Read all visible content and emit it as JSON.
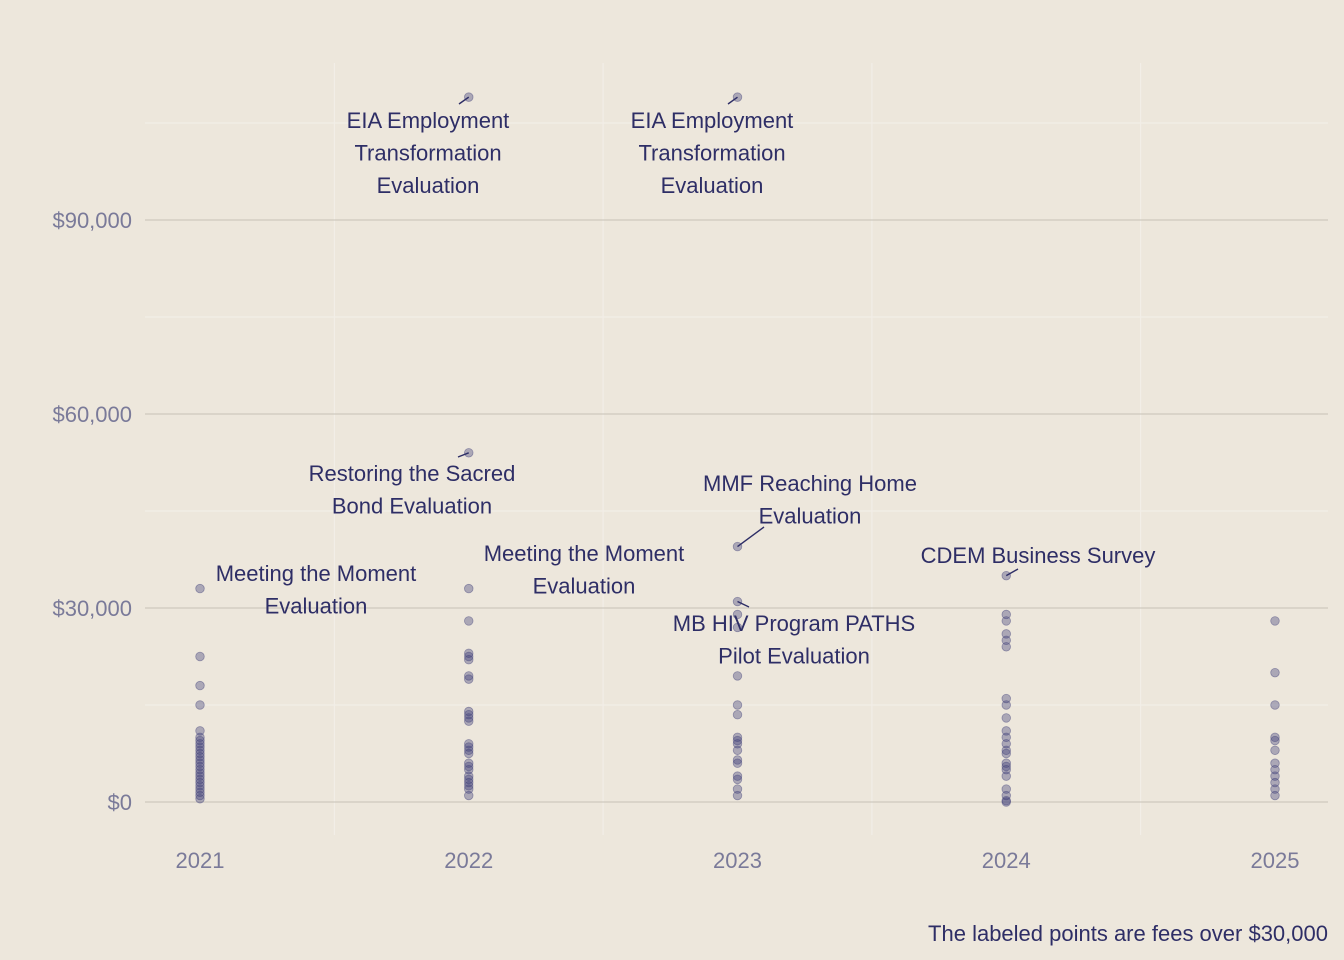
{
  "chart_data": {
    "type": "scatter",
    "title": "",
    "xlabel": "",
    "ylabel": "",
    "ylim": [
      -7000,
      117000
    ],
    "y_ticks": [
      0,
      30000,
      60000,
      90000
    ],
    "y_tick_labels": [
      "$0",
      "$30,000",
      "$60,000",
      "$90,000"
    ],
    "x_categories": [
      "2021",
      "2022",
      "2023",
      "2024",
      "2025"
    ],
    "grid": true,
    "caption": "The labeled points are fees over $30,000",
    "colors": {
      "background": "#ede7dc",
      "point": "#3e3e78",
      "text": "#2e2e66",
      "tick": "#7a7a99",
      "grid_major": "#c6c1b6",
      "grid_minor": "#f2eee7"
    },
    "points": {
      "2021": [
        33000,
        22500,
        18000,
        15000,
        11000,
        10000,
        9500,
        9000,
        8500,
        8000,
        7500,
        7000,
        6500,
        6000,
        5500,
        5000,
        4500,
        4000,
        3500,
        3000,
        2500,
        2000,
        1500,
        1000,
        500
      ],
      "2022": [
        109000,
        54000,
        33000,
        28000,
        23000,
        22500,
        22000,
        19500,
        19000,
        14000,
        13500,
        13000,
        12500,
        9000,
        8500,
        8000,
        7500,
        6000,
        5500,
        5000,
        4000,
        3500,
        3000,
        2500,
        2000,
        1000
      ],
      "2023": [
        109000,
        39500,
        31000,
        29000,
        27000,
        19500,
        15000,
        13500,
        10000,
        9500,
        9000,
        8000,
        6500,
        6000,
        4000,
        3500,
        2000,
        1000
      ],
      "2024": [
        35000,
        29000,
        28000,
        26000,
        25000,
        24000,
        16000,
        15000,
        13000,
        11000,
        10000,
        9000,
        8000,
        7500,
        6000,
        5500,
        5000,
        4000,
        2000,
        1000,
        200,
        0
      ],
      "2025": [
        28000,
        20000,
        15000,
        10000,
        9500,
        8000,
        6000,
        5000,
        4000,
        3000,
        2000,
        1000
      ]
    },
    "annotations": [
      {
        "x": "2021",
        "y": 33000,
        "lines": [
          "Meeting the Moment",
          "Evaluation"
        ]
      },
      {
        "x": "2022",
        "y": 109000,
        "lines": [
          "EIA Employment",
          "Transformation",
          "Evaluation"
        ]
      },
      {
        "x": "2022",
        "y": 54000,
        "lines": [
          "Restoring the Sacred",
          "Bond Evaluation"
        ]
      },
      {
        "x": "2022",
        "y": 33000,
        "lines": [
          "Meeting the Moment",
          "Evaluation"
        ]
      },
      {
        "x": "2023",
        "y": 109000,
        "lines": [
          "EIA Employment",
          "Transformation",
          "Evaluation"
        ]
      },
      {
        "x": "2023",
        "y": 39500,
        "lines": [
          "MMF Reaching Home",
          "Evaluation"
        ]
      },
      {
        "x": "2023",
        "y": 31000,
        "lines": [
          "MB HIV Program PATHS",
          "Pilot Evaluation"
        ]
      },
      {
        "x": "2024",
        "y": 35000,
        "lines": [
          "CDEM Business Survey"
        ]
      }
    ]
  }
}
